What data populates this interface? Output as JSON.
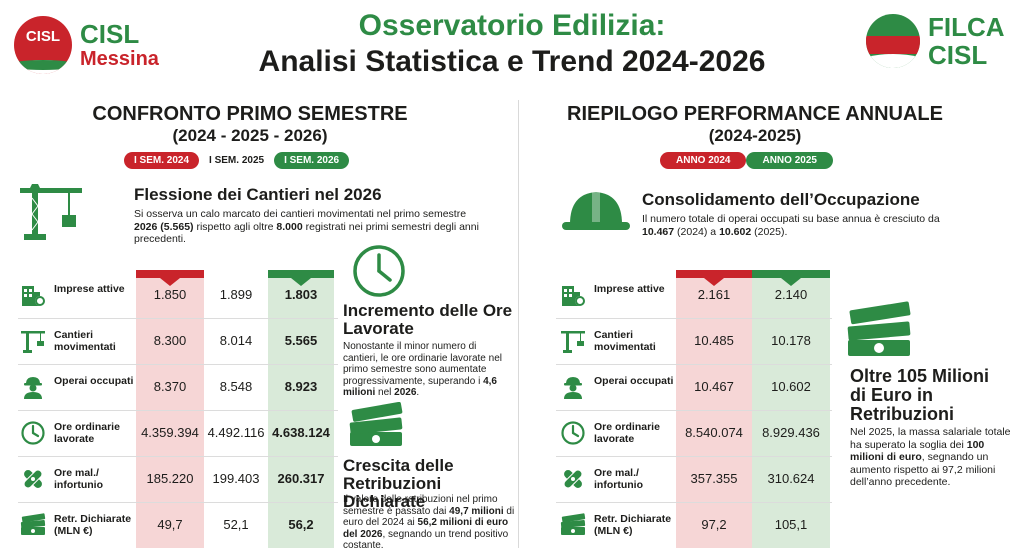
{
  "header": {
    "logo_left_circle": "CISL",
    "logo_left_line1": "CISL",
    "logo_left_line2": "Messina",
    "title_line1": "Osservatorio Edilizia:",
    "title_line2": "Analisi Statistica e Trend 2024-2026",
    "logo_right_line1": "FILCA",
    "logo_right_line2": "CISL"
  },
  "colors": {
    "red": "#c9242b",
    "green": "#2e8b45",
    "red_light": "#f6d6d6",
    "green_light": "#d9ead9"
  },
  "left": {
    "title": "CONFRONTO PRIMO SEMESTRE",
    "subtitle": "(2024 - 2025 - 2026)",
    "legend": [
      "I SEM. 2024",
      "I SEM. 2025",
      "I SEM. 2026"
    ],
    "feature1": {
      "icon": "crane-icon",
      "title": "Flessione dei Cantieri nel 2026",
      "text_a": "Si osserva un calo marcato dei cantieri movimentati nel primo semestre ",
      "text_b": "2026 (5.565)",
      "text_c": " rispetto agli oltre ",
      "text_d": "8.000",
      "text_e": " registrati nei primi semestri degli anni precedenti."
    },
    "rows": [
      {
        "icon": "building-gear-icon",
        "label": "Imprese attive",
        "values": [
          "1.850",
          "1.899",
          "1.803"
        ]
      },
      {
        "icon": "crane-icon",
        "label": "Cantieri movimentati",
        "values": [
          "8.300",
          "8.014",
          "5.565"
        ]
      },
      {
        "icon": "worker-icon",
        "label": "Operai occupati",
        "values": [
          "8.370",
          "8.548",
          "8.923"
        ]
      },
      {
        "icon": "clock-icon",
        "label": "Ore ordinarie lavorate",
        "values": [
          "4.359.394",
          "4.492.116",
          "4.638.124"
        ]
      },
      {
        "icon": "bandage-icon",
        "label": "Ore mal./ infortunio",
        "values": [
          "185.220",
          "199.403",
          "260.317"
        ]
      },
      {
        "icon": "money-icon",
        "label": "Retr. Dichiarate (MLN €)",
        "values": [
          "49,7",
          "52,1",
          "56,2"
        ]
      }
    ],
    "feature2": {
      "icon": "clock-icon",
      "title": "Incremento delle Ore Lavorate",
      "text_a": "Nonostante il minor numero di cantieri, le ore ordinarie lavorate nel primo semestre sono aumentate progressivamente, superando i ",
      "text_b": "4,6 milioni",
      "text_c": " nel ",
      "text_d": "2026",
      "text_e": "."
    },
    "feature3": {
      "icon": "money-icon",
      "title": "Crescita delle Retribuzioni Dichiarate",
      "text_a": "Il valore delle retribuzioni nel primo semestre è passato dai ",
      "text_b": "49,7 milioni",
      "text_c": " di euro del 2024 ai ",
      "text_d": "56,2 milioni di euro del 2026",
      "text_e": ", segnando un trend positivo costante."
    }
  },
  "right": {
    "title": "RIEPILOGO PERFORMANCE ANNUALE",
    "subtitle": "(2024-2025)",
    "legend": [
      "ANNO 2024",
      "ANNO 2025"
    ],
    "feature1": {
      "icon": "hardhat-icon",
      "title": "Consolidamento dell’Occupazione",
      "text_a": "Il numero totale di operai occupati su base annua è cresciuto da ",
      "text_b": "10.467",
      "text_c": " (2024) a ",
      "text_d": "10.602",
      "text_e": " (2025)."
    },
    "rows": [
      {
        "icon": "building-gear-icon",
        "label": "Imprese attive",
        "values": [
          "2.161",
          "2.140"
        ]
      },
      {
        "icon": "crane-icon",
        "label": "Cantieri movimentati",
        "values": [
          "10.485",
          "10.178"
        ]
      },
      {
        "icon": "worker-icon",
        "label": "Operai occupati",
        "values": [
          "10.467",
          "10.602"
        ]
      },
      {
        "icon": "clock-icon",
        "label": "Ore ordinarie lavorate",
        "values": [
          "8.540.074",
          "8.929.436"
        ]
      },
      {
        "icon": "bandage-icon",
        "label": "Ore mal./ infortunio",
        "values": [
          "357.355",
          "310.624"
        ]
      },
      {
        "icon": "money-icon",
        "label": "Retr. Dichiarate (MLN €)",
        "values": [
          "97,2",
          "105,1"
        ]
      }
    ],
    "feature2": {
      "icon": "money-icon",
      "title": "Oltre 105 Milioni di Euro in Retribuzioni",
      "text_a": "Nel 2025, la massa salariale totale ha superato la soglia dei ",
      "text_b": "100 milioni di euro",
      "text_c": ", segnando un aumento rispetto ai 97,2 milioni dell’anno precedente."
    }
  }
}
